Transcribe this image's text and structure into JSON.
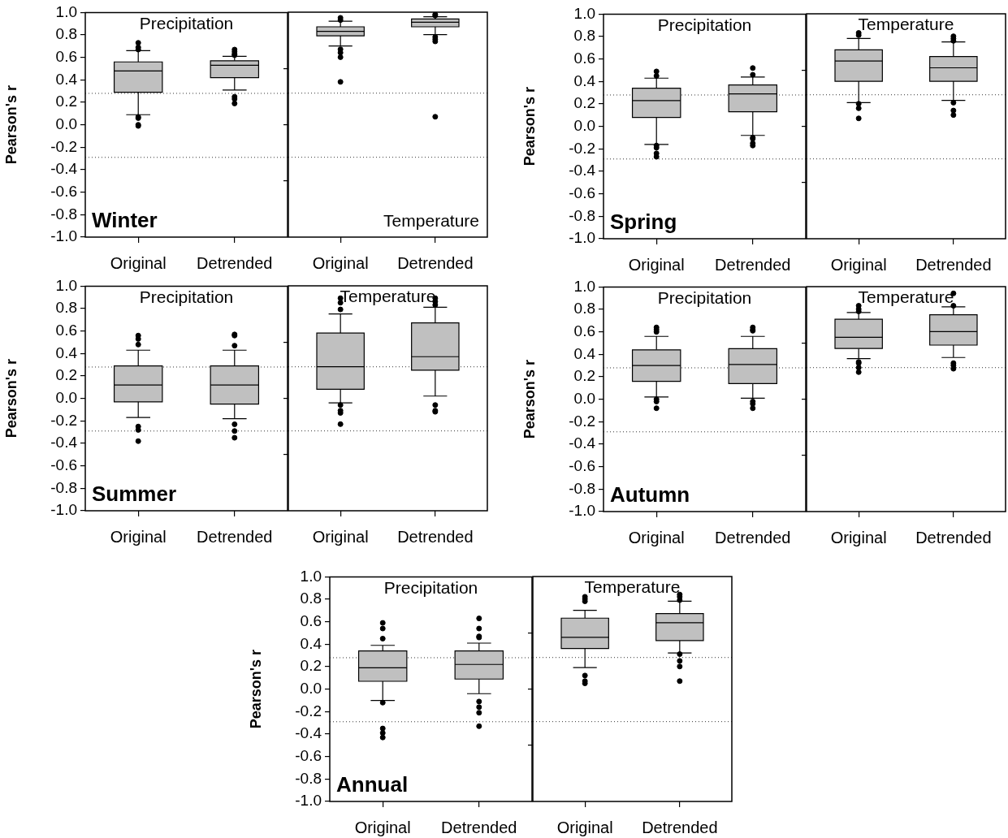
{
  "chart_data": [
    {
      "type": "box",
      "title": "Precipitation",
      "ylabel": "Pearson's r",
      "annotations": [
        "Winter"
      ],
      "categories": [
        "Original",
        "Detrended"
      ],
      "ylim": [
        -1,
        1
      ],
      "yticks": [
        {
          "value": -1,
          "label": "-1.0"
        },
        {
          "value": -0.8,
          "label": "-0.8"
        },
        {
          "value": -0.6,
          "label": "-0.6"
        },
        {
          "value": -0.4,
          "label": "-0.4"
        },
        {
          "value": -0.2,
          "label": "-0.2"
        },
        {
          "value": 0,
          "label": "0.0"
        },
        {
          "value": 0.2,
          "label": "0.2"
        },
        {
          "value": 0.4,
          "label": "0.4"
        },
        {
          "value": 0.6,
          "label": "0.6"
        },
        {
          "value": 0.8,
          "label": "0.8"
        },
        {
          "value": 1,
          "label": "1.0"
        }
      ],
      "ref_lines": [
        {
          "axis": "y",
          "value": 0.28,
          "color": "#333333",
          "line_style": "dotted"
        },
        {
          "axis": "y",
          "value": -0.29,
          "color": "#333333",
          "line_style": "dotted"
        }
      ],
      "color": "#c0c0c0",
      "boxes": [
        {
          "low": 0.09,
          "q1": 0.29,
          "median": 0.48,
          "q3": 0.56,
          "high": 0.66,
          "outliers": [
            0.73,
            0.69,
            0.67,
            0.07,
            0.06,
            0.0,
            -0.01
          ]
        },
        {
          "low": 0.31,
          "q1": 0.42,
          "median": 0.53,
          "q3": 0.57,
          "high": 0.61,
          "outliers": [
            0.67,
            0.65,
            0.63,
            0.62,
            0.25,
            0.23,
            0.19
          ]
        }
      ]
    },
    {
      "type": "box",
      "title": "Temperature",
      "categories": [
        "Original",
        "Detrended"
      ],
      "tick_labels": "x",
      "ylim": [
        -1,
        1
      ],
      "yticks": [
        {
          "value": -0.5,
          "label": null
        },
        {
          "value": 0,
          "label": null
        },
        {
          "value": 0.5,
          "label": null
        }
      ],
      "ref_lines": [
        {
          "axis": "y",
          "value": 0.28,
          "color": "#333333",
          "line_style": "dotted"
        },
        {
          "axis": "y",
          "value": -0.29,
          "color": "#333333",
          "line_style": "dotted"
        }
      ],
      "color": "#c0c0c0",
      "boxes": [
        {
          "low": 0.7,
          "q1": 0.79,
          "median": 0.83,
          "q3": 0.87,
          "high": 0.92,
          "outliers": [
            0.95,
            0.93,
            0.67,
            0.64,
            0.6,
            0.38
          ]
        },
        {
          "low": 0.8,
          "q1": 0.87,
          "median": 0.91,
          "q3": 0.94,
          "high": 0.96,
          "outliers": [
            0.98,
            0.97,
            0.78,
            0.76,
            0.74,
            0.07
          ]
        }
      ]
    },
    {
      "type": "box",
      "title": "Precipitation",
      "ylabel": "Pearson's r",
      "annotations": [
        "Spring"
      ],
      "categories": [
        "Original",
        "Detrended"
      ],
      "ylim": [
        -1,
        1
      ],
      "yticks": [
        {
          "value": -1,
          "label": "-1.0"
        },
        {
          "value": -0.8,
          "label": "-0.8"
        },
        {
          "value": -0.6,
          "label": "-0.6"
        },
        {
          "value": -0.4,
          "label": "-0.4"
        },
        {
          "value": -0.2,
          "label": "-0.2"
        },
        {
          "value": 0,
          "label": "0.0"
        },
        {
          "value": 0.2,
          "label": "0.2"
        },
        {
          "value": 0.4,
          "label": "0.4"
        },
        {
          "value": 0.6,
          "label": "0.6"
        },
        {
          "value": 0.8,
          "label": "0.8"
        },
        {
          "value": 1,
          "label": "1.0"
        }
      ],
      "ref_lines": [
        {
          "axis": "y",
          "value": 0.28,
          "color": "#333333",
          "line_style": "dotted"
        },
        {
          "axis": "y",
          "value": -0.29,
          "color": "#333333",
          "line_style": "dotted"
        }
      ],
      "color": "#c0c0c0",
      "boxes": [
        {
          "low": -0.16,
          "q1": 0.08,
          "median": 0.23,
          "q3": 0.34,
          "high": 0.43,
          "outliers": [
            0.49,
            0.45,
            -0.17,
            -0.19,
            -0.24,
            -0.27
          ]
        },
        {
          "low": -0.08,
          "q1": 0.13,
          "median": 0.29,
          "q3": 0.37,
          "high": 0.44,
          "outliers": [
            0.52,
            0.46,
            -0.1,
            -0.11,
            -0.15,
            -0.17
          ]
        }
      ]
    },
    {
      "type": "box",
      "title": "Temperature",
      "categories": [
        "Original",
        "Detrended"
      ],
      "tick_labels": "x",
      "ylim": [
        -1,
        1
      ],
      "yticks": [
        {
          "value": -0.5,
          "label": null
        },
        {
          "value": 0,
          "label": null
        },
        {
          "value": 0.5,
          "label": null
        }
      ],
      "ref_lines": [
        {
          "axis": "y",
          "value": 0.28,
          "color": "#333333",
          "line_style": "dotted"
        },
        {
          "axis": "y",
          "value": -0.29,
          "color": "#333333",
          "line_style": "dotted"
        }
      ],
      "color": "#c0c0c0",
      "boxes": [
        {
          "low": 0.21,
          "q1": 0.4,
          "median": 0.58,
          "q3": 0.68,
          "high": 0.78,
          "outliers": [
            0.83,
            0.81,
            0.2,
            0.16,
            0.07
          ]
        },
        {
          "low": 0.23,
          "q1": 0.4,
          "median": 0.52,
          "q3": 0.62,
          "high": 0.75,
          "outliers": [
            0.8,
            0.78,
            0.76,
            0.21,
            0.14,
            0.1
          ]
        }
      ]
    },
    {
      "type": "box",
      "title": "Precipitation",
      "ylabel": "Pearson's r",
      "annotations": [
        "Summer"
      ],
      "categories": [
        "Original",
        "Detrended"
      ],
      "ylim": [
        -1,
        1
      ],
      "yticks": [
        {
          "value": -1,
          "label": "-1.0"
        },
        {
          "value": -0.8,
          "label": "-0.8"
        },
        {
          "value": -0.6,
          "label": "-0.6"
        },
        {
          "value": -0.4,
          "label": "-0.4"
        },
        {
          "value": -0.2,
          "label": "-0.2"
        },
        {
          "value": 0,
          "label": "0.0"
        },
        {
          "value": 0.2,
          "label": "0.2"
        },
        {
          "value": 0.4,
          "label": "0.4"
        },
        {
          "value": 0.6,
          "label": "0.6"
        },
        {
          "value": 0.8,
          "label": "0.8"
        },
        {
          "value": 1,
          "label": "1.0"
        }
      ],
      "ref_lines": [
        {
          "axis": "y",
          "value": 0.28,
          "color": "#333333",
          "line_style": "dotted"
        },
        {
          "axis": "y",
          "value": -0.29,
          "color": "#333333",
          "line_style": "dotted"
        }
      ],
      "color": "#c0c0c0",
      "boxes": [
        {
          "low": -0.17,
          "q1": -0.03,
          "median": 0.12,
          "q3": 0.29,
          "high": 0.43,
          "outliers": [
            0.56,
            0.53,
            0.48,
            -0.25,
            -0.28,
            -0.38
          ]
        },
        {
          "low": -0.18,
          "q1": -0.05,
          "median": 0.12,
          "q3": 0.29,
          "high": 0.43,
          "outliers": [
            0.57,
            0.56,
            0.47,
            -0.23,
            -0.29,
            -0.35
          ]
        }
      ]
    },
    {
      "type": "box",
      "title": "Temperature",
      "categories": [
        "Original",
        "Detrended"
      ],
      "tick_labels": "x",
      "ylim": [
        -1,
        1
      ],
      "yticks": [
        {
          "value": -0.5,
          "label": null
        },
        {
          "value": 0,
          "label": null
        },
        {
          "value": 0.5,
          "label": null
        }
      ],
      "ref_lines": [
        {
          "axis": "y",
          "value": 0.28,
          "color": "#333333",
          "line_style": "dotted"
        },
        {
          "axis": "y",
          "value": -0.29,
          "color": "#333333",
          "line_style": "dotted"
        }
      ],
      "color": "#c0c0c0",
      "boxes": [
        {
          "low": -0.04,
          "q1": 0.08,
          "median": 0.28,
          "q3": 0.58,
          "high": 0.75,
          "outliers": [
            0.89,
            0.85,
            0.79,
            -0.06,
            -0.11,
            -0.13,
            -0.23
          ]
        },
        {
          "low": 0.02,
          "q1": 0.25,
          "median": 0.37,
          "q3": 0.67,
          "high": 0.81,
          "outliers": [
            0.89,
            0.86,
            0.83,
            -0.06,
            -0.11,
            -0.12
          ]
        }
      ]
    },
    {
      "type": "box",
      "title": "Precipitation",
      "ylabel": "Pearson's r",
      "annotations": [
        "Autumn"
      ],
      "categories": [
        "Original",
        "Detrended"
      ],
      "ylim": [
        -1,
        1
      ],
      "yticks": [
        {
          "value": -1,
          "label": "-1.0"
        },
        {
          "value": -0.8,
          "label": "-0.8"
        },
        {
          "value": -0.6,
          "label": "-0.6"
        },
        {
          "value": -0.4,
          "label": "-0.4"
        },
        {
          "value": -0.2,
          "label": "-0.2"
        },
        {
          "value": 0,
          "label": "0.0"
        },
        {
          "value": 0.2,
          "label": "0.2"
        },
        {
          "value": 0.4,
          "label": "0.4"
        },
        {
          "value": 0.6,
          "label": "0.6"
        },
        {
          "value": 0.8,
          "label": "0.8"
        },
        {
          "value": 1,
          "label": "1.0"
        }
      ],
      "ref_lines": [
        {
          "axis": "y",
          "value": 0.28,
          "color": "#333333",
          "line_style": "dotted"
        },
        {
          "axis": "y",
          "value": -0.29,
          "color": "#333333",
          "line_style": "dotted"
        }
      ],
      "color": "#c0c0c0",
      "boxes": [
        {
          "low": 0.02,
          "q1": 0.16,
          "median": 0.3,
          "q3": 0.44,
          "high": 0.56,
          "outliers": [
            0.64,
            0.62,
            0.6,
            0.0,
            -0.02,
            -0.08
          ]
        },
        {
          "low": 0.01,
          "q1": 0.14,
          "median": 0.31,
          "q3": 0.45,
          "high": 0.56,
          "outliers": [
            0.64,
            0.62,
            0.61,
            -0.02,
            -0.04,
            -0.08
          ]
        }
      ]
    },
    {
      "type": "box",
      "title": "Temperature",
      "categories": [
        "Original",
        "Detrended"
      ],
      "tick_labels": "x",
      "ylim": [
        -1,
        1
      ],
      "yticks": [
        {
          "value": -0.5,
          "label": null
        },
        {
          "value": 0,
          "label": null
        },
        {
          "value": 0.5,
          "label": null
        }
      ],
      "ref_lines": [
        {
          "axis": "y",
          "value": 0.28,
          "color": "#333333",
          "line_style": "dotted"
        },
        {
          "axis": "y",
          "value": -0.29,
          "color": "#333333",
          "line_style": "dotted"
        }
      ],
      "color": "#c0c0c0",
      "boxes": [
        {
          "low": 0.36,
          "q1": 0.45,
          "median": 0.55,
          "q3": 0.71,
          "high": 0.77,
          "outliers": [
            0.83,
            0.8,
            0.78,
            0.33,
            0.32,
            0.28,
            0.24
          ]
        },
        {
          "low": 0.37,
          "q1": 0.48,
          "median": 0.6,
          "q3": 0.75,
          "high": 0.82,
          "outliers": [
            0.94,
            0.83,
            0.32,
            0.3,
            0.27
          ]
        }
      ]
    },
    {
      "type": "box",
      "title": "Precipitation",
      "ylabel": "Pearson's r",
      "annotations": [
        "Annual"
      ],
      "categories": [
        "Original",
        "Detrended"
      ],
      "ylim": [
        -1,
        1
      ],
      "yticks": [
        {
          "value": -1,
          "label": "-1.0"
        },
        {
          "value": -0.8,
          "label": "-0.8"
        },
        {
          "value": -0.6,
          "label": "-0.6"
        },
        {
          "value": -0.4,
          "label": "-0.4"
        },
        {
          "value": -0.2,
          "label": "-0.2"
        },
        {
          "value": 0,
          "label": "0.0"
        },
        {
          "value": 0.2,
          "label": "0.2"
        },
        {
          "value": 0.4,
          "label": "0.4"
        },
        {
          "value": 0.6,
          "label": "0.6"
        },
        {
          "value": 0.8,
          "label": "0.8"
        },
        {
          "value": 1,
          "label": "1.0"
        }
      ],
      "ref_lines": [
        {
          "axis": "y",
          "value": 0.28,
          "color": "#333333",
          "line_style": "dotted"
        },
        {
          "axis": "y",
          "value": -0.29,
          "color": "#333333",
          "line_style": "dotted"
        }
      ],
      "color": "#c0c0c0",
      "boxes": [
        {
          "low": -0.1,
          "q1": 0.07,
          "median": 0.19,
          "q3": 0.34,
          "high": 0.39,
          "outliers": [
            0.59,
            0.54,
            0.45,
            -0.12,
            -0.35,
            -0.39,
            -0.43
          ]
        },
        {
          "low": -0.04,
          "q1": 0.09,
          "median": 0.22,
          "q3": 0.34,
          "high": 0.41,
          "outliers": [
            0.63,
            0.54,
            0.47,
            0.46,
            -0.11,
            -0.16,
            -0.21,
            -0.33
          ]
        }
      ]
    },
    {
      "type": "box",
      "title": "Temperature",
      "categories": [
        "Original",
        "Detrended"
      ],
      "tick_labels": "x",
      "ylim": [
        -1,
        1
      ],
      "yticks": [
        {
          "value": -0.5,
          "label": null
        },
        {
          "value": 0,
          "label": null
        },
        {
          "value": 0.5,
          "label": null
        }
      ],
      "ref_lines": [
        {
          "axis": "y",
          "value": 0.28,
          "color": "#333333",
          "line_style": "dotted"
        },
        {
          "axis": "y",
          "value": -0.29,
          "color": "#333333",
          "line_style": "dotted"
        }
      ],
      "color": "#c0c0c0",
      "boxes": [
        {
          "low": 0.19,
          "q1": 0.36,
          "median": 0.46,
          "q3": 0.63,
          "high": 0.7,
          "outliers": [
            0.82,
            0.8,
            0.78,
            0.12,
            0.07,
            0.05
          ]
        },
        {
          "low": 0.32,
          "q1": 0.43,
          "median": 0.59,
          "q3": 0.67,
          "high": 0.78,
          "outliers": [
            0.84,
            0.82,
            0.79,
            0.31,
            0.25,
            0.2,
            0.07
          ]
        }
      ]
    }
  ]
}
